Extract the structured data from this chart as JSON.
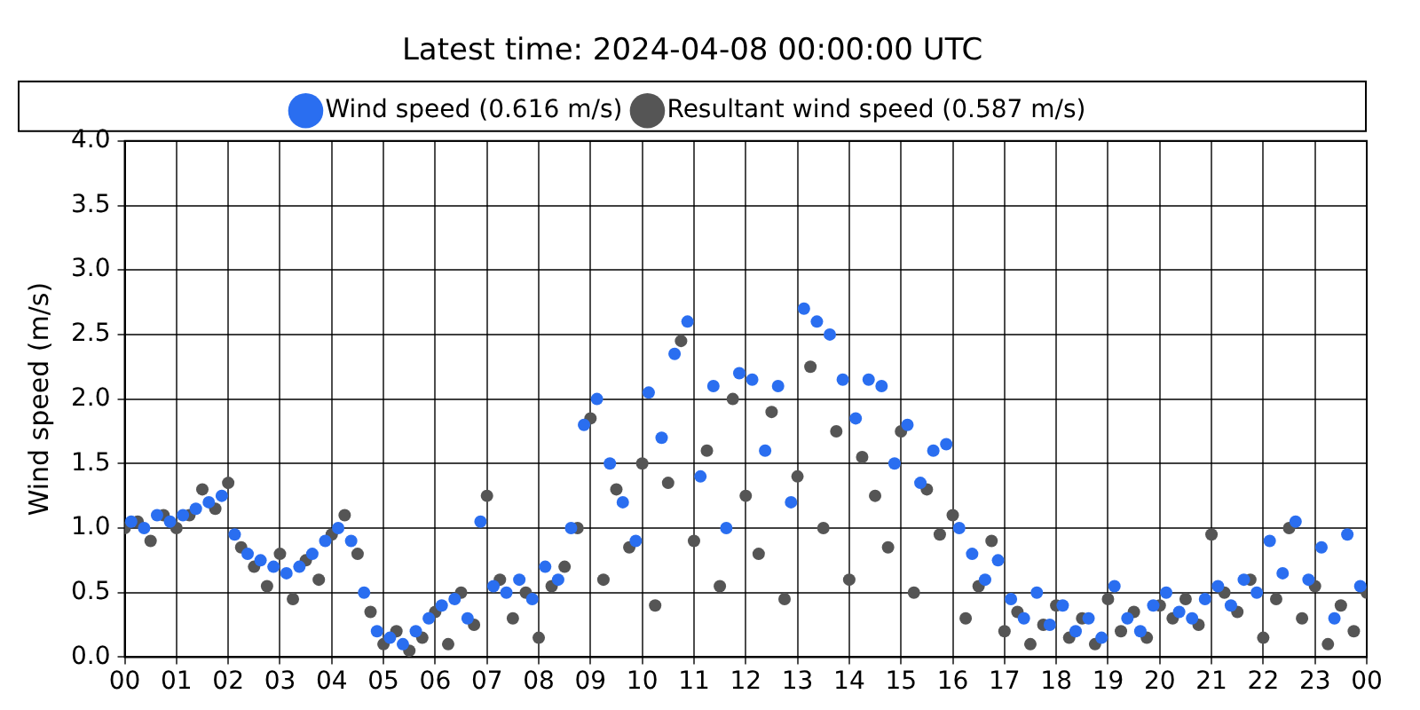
{
  "chart_data": {
    "type": "scatter",
    "title": "Latest time: 2024-04-08 00:00:00 UTC",
    "ylabel": "Wind speed (m/s)",
    "legend": "top",
    "grid": true,
    "marker": "circle",
    "xlim": [
      0,
      24
    ],
    "xticks": [
      {
        "value": 0,
        "label": "00"
      },
      {
        "value": 1,
        "label": "01"
      },
      {
        "value": 2,
        "label": "02"
      },
      {
        "value": 3,
        "label": "03"
      },
      {
        "value": 4,
        "label": "04"
      },
      {
        "value": 5,
        "label": "05"
      },
      {
        "value": 6,
        "label": "06"
      },
      {
        "value": 7,
        "label": "07"
      },
      {
        "value": 8,
        "label": "08"
      },
      {
        "value": 9,
        "label": "09"
      },
      {
        "value": 10,
        "label": "10"
      },
      {
        "value": 11,
        "label": "11"
      },
      {
        "value": 12,
        "label": "12"
      },
      {
        "value": 13,
        "label": "13"
      },
      {
        "value": 14,
        "label": "14"
      },
      {
        "value": 15,
        "label": "15"
      },
      {
        "value": 16,
        "label": "16"
      },
      {
        "value": 17,
        "label": "17"
      },
      {
        "value": 18,
        "label": "18"
      },
      {
        "value": 19,
        "label": "19"
      },
      {
        "value": 20,
        "label": "20"
      },
      {
        "value": 21,
        "label": "21"
      },
      {
        "value": 22,
        "label": "22"
      },
      {
        "value": 23,
        "label": "23"
      },
      {
        "value": 24,
        "label": "00"
      }
    ],
    "ylim": [
      0,
      4
    ],
    "yticks": [
      {
        "value": 0,
        "label": "0.0"
      },
      {
        "value": 0.5,
        "label": "0.5"
      },
      {
        "value": 1,
        "label": "1.0"
      },
      {
        "value": 1.5,
        "label": "1.5"
      },
      {
        "value": 2,
        "label": "2.0"
      },
      {
        "value": 2.5,
        "label": "2.5"
      },
      {
        "value": 3,
        "label": "3.0"
      },
      {
        "value": 3.5,
        "label": "3.5"
      },
      {
        "value": 4,
        "label": "4.0"
      }
    ],
    "series": [
      {
        "name": "Wind speed (0.616 m/s)",
        "color": "#2a6ef0",
        "x": [
          0.125,
          0.375,
          0.625,
          0.875,
          1.125,
          1.375,
          1.625,
          1.875,
          2.125,
          2.375,
          2.625,
          2.875,
          3.125,
          3.375,
          3.625,
          3.875,
          4.125,
          4.375,
          4.625,
          4.875,
          5.125,
          5.375,
          5.625,
          5.875,
          6.125,
          6.375,
          6.625,
          6.875,
          7.125,
          7.375,
          7.625,
          7.875,
          8.125,
          8.375,
          8.625,
          8.875,
          9.125,
          9.375,
          9.625,
          9.875,
          10.125,
          10.375,
          10.625,
          10.875,
          11.125,
          11.375,
          11.625,
          11.875,
          12.125,
          12.375,
          12.625,
          12.875,
          13.125,
          13.375,
          13.625,
          13.875,
          14.125,
          14.375,
          14.625,
          14.875,
          15.125,
          15.375,
          15.625,
          15.875,
          16.125,
          16.375,
          16.625,
          16.875,
          17.125,
          17.375,
          17.625,
          17.875,
          18.125,
          18.375,
          18.625,
          18.875,
          19.125,
          19.375,
          19.625,
          19.875,
          20.125,
          20.375,
          20.625,
          20.875,
          21.125,
          21.375,
          21.625,
          21.875,
          22.125,
          22.375,
          22.625,
          22.875,
          23.125,
          23.375,
          23.625,
          23.875
        ],
        "values": [
          1.05,
          1.0,
          1.1,
          1.05,
          1.1,
          1.15,
          1.2,
          1.25,
          0.95,
          0.8,
          0.75,
          0.7,
          0.65,
          0.7,
          0.8,
          0.9,
          1.0,
          0.9,
          0.5,
          0.2,
          0.15,
          0.1,
          0.2,
          0.3,
          0.4,
          0.45,
          0.3,
          1.05,
          0.55,
          0.5,
          0.6,
          0.45,
          0.7,
          0.6,
          1.0,
          1.8,
          2.0,
          1.5,
          1.2,
          0.9,
          2.05,
          1.7,
          2.35,
          2.6,
          1.4,
          2.1,
          1.0,
          2.2,
          2.15,
          1.6,
          2.1,
          1.2,
          2.7,
          2.6,
          2.5,
          2.15,
          1.85,
          2.15,
          2.1,
          1.5,
          1.8,
          1.35,
          1.6,
          1.65,
          1.0,
          0.8,
          0.6,
          0.75,
          0.45,
          0.3,
          0.5,
          0.25,
          0.4,
          0.2,
          0.3,
          0.15,
          0.55,
          0.3,
          0.2,
          0.4,
          0.5,
          0.35,
          0.3,
          0.45,
          0.55,
          0.4,
          0.6,
          0.5,
          0.9,
          0.65,
          1.05,
          0.6,
          0.85,
          0.3,
          0.95,
          0.55
        ]
      },
      {
        "name": "Resultant wind speed (0.587 m/s)",
        "color": "#555555",
        "x": [
          0,
          0.25,
          0.5,
          0.75,
          1,
          1.25,
          1.5,
          1.75,
          2,
          2.25,
          2.5,
          2.75,
          3,
          3.25,
          3.5,
          3.75,
          4,
          4.25,
          4.5,
          4.75,
          5,
          5.25,
          5.5,
          5.75,
          6,
          6.25,
          6.5,
          6.75,
          7,
          7.25,
          7.5,
          7.75,
          8,
          8.25,
          8.5,
          8.75,
          9,
          9.25,
          9.5,
          9.75,
          10,
          10.25,
          10.5,
          10.75,
          11,
          11.25,
          11.5,
          11.75,
          12,
          12.25,
          12.5,
          12.75,
          13,
          13.25,
          13.5,
          13.75,
          14,
          14.25,
          14.5,
          14.75,
          15,
          15.25,
          15.5,
          15.75,
          16,
          16.25,
          16.5,
          16.75,
          17,
          17.25,
          17.5,
          17.75,
          18,
          18.25,
          18.5,
          18.75,
          19,
          19.25,
          19.5,
          19.75,
          20,
          20.25,
          20.5,
          20.75,
          21,
          21.25,
          21.5,
          21.75,
          22,
          22.25,
          22.5,
          22.75,
          23,
          23.25,
          23.5,
          23.75,
          24
        ],
        "values": [
          1.0,
          1.05,
          0.9,
          1.1,
          1.0,
          1.1,
          1.3,
          1.15,
          1.35,
          0.85,
          0.7,
          0.55,
          0.8,
          0.45,
          0.75,
          0.6,
          0.95,
          1.1,
          0.8,
          0.35,
          0.1,
          0.2,
          0.05,
          0.15,
          0.35,
          0.1,
          0.5,
          0.25,
          1.25,
          0.6,
          0.3,
          0.5,
          0.15,
          0.55,
          0.7,
          1.0,
          1.85,
          0.6,
          1.3,
          0.85,
          1.5,
          0.4,
          1.35,
          2.45,
          0.9,
          1.6,
          0.55,
          2.0,
          1.25,
          0.8,
          1.9,
          0.45,
          1.4,
          2.25,
          1.0,
          1.75,
          0.6,
          1.55,
          1.25,
          0.85,
          1.75,
          0.5,
          1.3,
          0.95,
          1.1,
          0.3,
          0.55,
          0.9,
          0.2,
          0.35,
          0.1,
          0.25,
          0.4,
          0.15,
          0.3,
          0.1,
          0.45,
          0.2,
          0.35,
          0.15,
          0.4,
          0.3,
          0.45,
          0.25,
          0.95,
          0.5,
          0.35,
          0.6,
          0.15,
          0.45,
          1.0,
          0.3,
          0.55,
          0.1,
          0.4,
          0.2,
          0.5
        ]
      }
    ]
  }
}
